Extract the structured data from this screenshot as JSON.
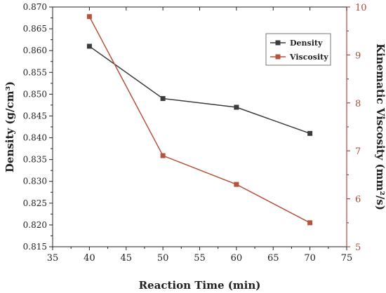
{
  "chart_data": {
    "type": "line",
    "xlabel": "Reaction Time (min)",
    "ylabel_left": "Density (g/cm³)",
    "ylabel_right": "Kinematic Viscosity (mm²/s)",
    "xlim": [
      35,
      75
    ],
    "ylim_left": [
      0.815,
      0.87
    ],
    "ylim_right": [
      5,
      10
    ],
    "x_ticks": [
      "35",
      "40",
      "45",
      "50",
      "55",
      "60",
      "65",
      "70",
      "75"
    ],
    "y_left_ticks": [
      "0.815",
      "0.820",
      "0.825",
      "0.830",
      "0.835",
      "0.840",
      "0.845",
      "0.850",
      "0.855",
      "0.860",
      "0.865",
      "0.870"
    ],
    "y_right_ticks": [
      "5",
      "6",
      "7",
      "8",
      "9",
      "10"
    ],
    "x": [
      40,
      50,
      60,
      70
    ],
    "series": [
      {
        "name": "Density",
        "axis": "left",
        "values": [
          0.861,
          0.849,
          0.847,
          0.841
        ],
        "color": "#3b3b3b",
        "marker": "square"
      },
      {
        "name": "Viscosity",
        "axis": "right",
        "values": [
          9.8,
          6.9,
          6.3,
          5.5
        ],
        "color": "#b5533c",
        "marker": "square"
      }
    ],
    "legend_position": "top-right",
    "grid": false,
    "right_axis_color": "#a94a3b"
  }
}
